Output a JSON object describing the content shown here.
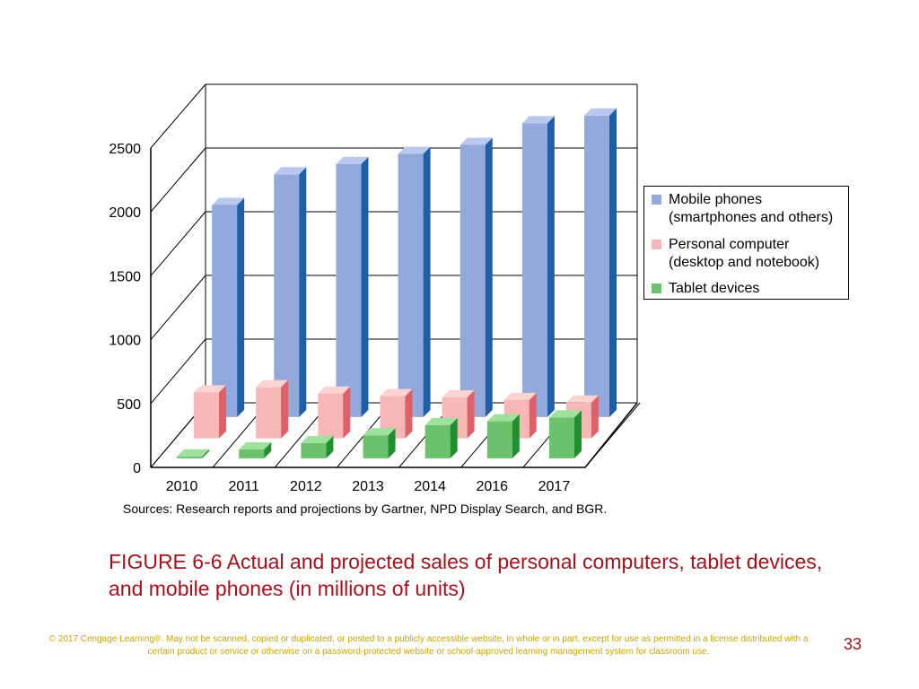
{
  "chart_data": {
    "type": "bar",
    "categories": [
      "2010",
      "2011",
      "2012",
      "2013",
      "2014",
      "2016",
      "2017"
    ],
    "series": [
      {
        "name": "Mobile phones\n(smartphones and others)",
        "values": [
          1660,
          1900,
          1980,
          2060,
          2130,
          2300,
          2360
        ]
      },
      {
        "name": "Personal computer\n(desktop and notebook)",
        "values": [
          360,
          400,
          350,
          330,
          320,
          300,
          280
        ]
      },
      {
        "name": "Tablet devices",
        "values": [
          15,
          70,
          120,
          180,
          260,
          290,
          320
        ]
      }
    ],
    "yticks": [
      "0",
      "500",
      "1000",
      "1500",
      "2000",
      "2500"
    ],
    "ylim": [
      0,
      2500
    ],
    "grid": true,
    "legend_position": "right"
  },
  "legend": [
    {
      "line1": "Mobile phones",
      "line2": "(smartphones and others)",
      "color": "#93a9dc"
    },
    {
      "line1": "Personal computer",
      "line2": "(desktop and notebook)",
      "color": "#f6b8b6"
    },
    {
      "line1": "Tablet devices",
      "line2": "",
      "color": "#6cc26c"
    }
  ],
  "colors": {
    "mobile_front": "#93a9dc",
    "mobile_side": "#1f5fa8",
    "mobile_top": "#b9c8ec",
    "pc_front": "#f6b8b6",
    "pc_side": "#e0606a",
    "pc_top": "#fbd3d1",
    "tablet_front": "#6cc26c",
    "tablet_side": "#1f8f2f",
    "tablet_top": "#9ee09e"
  },
  "sources": "Sources: Research reports and projections by Gartner, NPD Display Search, and BGR.",
  "caption": "FIGURE 6-6 Actual and projected sales of personal computers, tablet devices, and mobile phones (in millions of units)",
  "copyright": "© 2017 Cengage Learning®. May not be scanned, copied or duplicated, or posted to a publicly accessible website, in whole or in part, except for use as permitted in a license distributed with a certain product or service or otherwise on a password-protected website or school-approved learning management system for classroom use.",
  "page_number": "33"
}
